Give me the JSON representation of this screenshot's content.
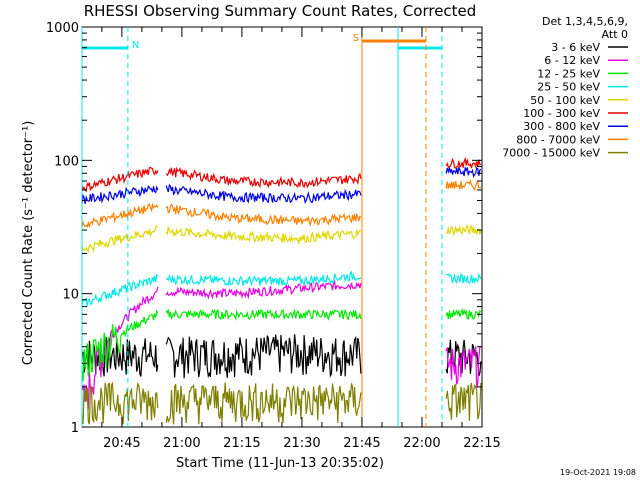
{
  "chart_data": {
    "type": "line",
    "title": "RHESSI Observing Summary Count Rates, Corrected",
    "xlabel": "Start Time (11-Jun-13 20:35:02)",
    "ylabel": "Corrected Count Rate (s⁻¹ detector⁻¹)",
    "y_scale": "log",
    "ylim": [
      1,
      1000
    ],
    "y_ticks": [
      "1",
      "10",
      "100",
      "1000"
    ],
    "xlim": [
      "20:35:02",
      "22:15:00"
    ],
    "x_ticks": [
      "20:45",
      "21:00",
      "21:15",
      "21:30",
      "21:45",
      "22:00",
      "22:15"
    ],
    "detector_note": "Det 1,3,4,5,6,9,",
    "attenuator_note": "Att 0",
    "legend_placement": "right",
    "data_gaps": [
      [
        "20:54",
        "20:56"
      ],
      [
        "21:45",
        "22:06"
      ]
    ],
    "series": [
      {
        "name": "3 - 6 keV",
        "color": "#000000",
        "values": [
          [
            20.6,
            3.5
          ],
          [
            20.9,
            3.5
          ],
          [
            21.2,
            3.6
          ],
          [
            21.5,
            3.7
          ],
          [
            21.8,
            3.5
          ],
          [
            22.0,
            3.4
          ]
        ]
      },
      {
        "name": "6 - 12 keV",
        "color": "#e800e8",
        "values": [
          [
            20.6,
            1.6
          ],
          [
            20.9,
            10.5
          ],
          [
            21.2,
            10.0
          ],
          [
            21.5,
            11.0
          ],
          [
            21.8,
            12.0
          ],
          [
            22.0,
            3.0
          ]
        ]
      },
      {
        "name": "12 - 25 keV",
        "color": "#00e800",
        "values": [
          [
            20.6,
            3.2
          ],
          [
            20.9,
            7.0
          ],
          [
            21.2,
            7.0
          ],
          [
            21.5,
            7.0
          ],
          [
            21.8,
            7.0
          ],
          [
            22.0,
            7.0
          ]
        ]
      },
      {
        "name": "25 - 50 keV",
        "color": "#00e8e8",
        "values": [
          [
            20.6,
            8.5
          ],
          [
            20.9,
            13.0
          ],
          [
            21.2,
            12.5
          ],
          [
            21.5,
            12.5
          ],
          [
            21.8,
            14.0
          ],
          [
            22.0,
            13.0
          ]
        ]
      },
      {
        "name": "50 - 100 keV",
        "color": "#e0d800",
        "values": [
          [
            20.6,
            22.0
          ],
          [
            20.9,
            30.0
          ],
          [
            21.2,
            27.0
          ],
          [
            21.5,
            26.0
          ],
          [
            21.8,
            29.0
          ],
          [
            22.0,
            30.0
          ]
        ]
      },
      {
        "name": "100 - 300 keV",
        "color": "#e80000",
        "values": [
          [
            20.6,
            63.0
          ],
          [
            20.9,
            85.0
          ],
          [
            21.2,
            70.0
          ],
          [
            21.5,
            68.0
          ],
          [
            21.8,
            75.0
          ],
          [
            22.0,
            95.0
          ]
        ]
      },
      {
        "name": "300 - 800 keV",
        "color": "#0000e8",
        "values": [
          [
            20.6,
            51.0
          ],
          [
            20.9,
            62.0
          ],
          [
            21.2,
            53.0
          ],
          [
            21.5,
            52.0
          ],
          [
            21.8,
            57.0
          ],
          [
            22.0,
            82.0
          ]
        ]
      },
      {
        "name": "800 - 7000 keV",
        "color": "#ff8000",
        "values": [
          [
            20.6,
            33.0
          ],
          [
            20.9,
            45.0
          ],
          [
            21.2,
            37.0
          ],
          [
            21.5,
            35.0
          ],
          [
            21.8,
            38.0
          ],
          [
            22.0,
            65.0
          ]
        ]
      },
      {
        "name": "7000 - 15000 keV",
        "color": "#808000",
        "values": [
          [
            20.6,
            1.6
          ],
          [
            20.9,
            1.6
          ],
          [
            21.2,
            1.6
          ],
          [
            21.5,
            1.6
          ],
          [
            21.8,
            1.6
          ],
          [
            22.0,
            1.6
          ]
        ]
      }
    ],
    "flags": [
      {
        "label": "N",
        "color": "#00e8e8",
        "intervals": [
          [
            "20:35:02",
            "20:46:30"
          ],
          [
            "21:54",
            "22:05"
          ]
        ]
      },
      {
        "label": "S",
        "color": "#ff8000",
        "intervals": [
          [
            "21:45",
            "22:01"
          ]
        ]
      }
    ],
    "footer_timestamp": "19-Oct-2021 19:08"
  }
}
